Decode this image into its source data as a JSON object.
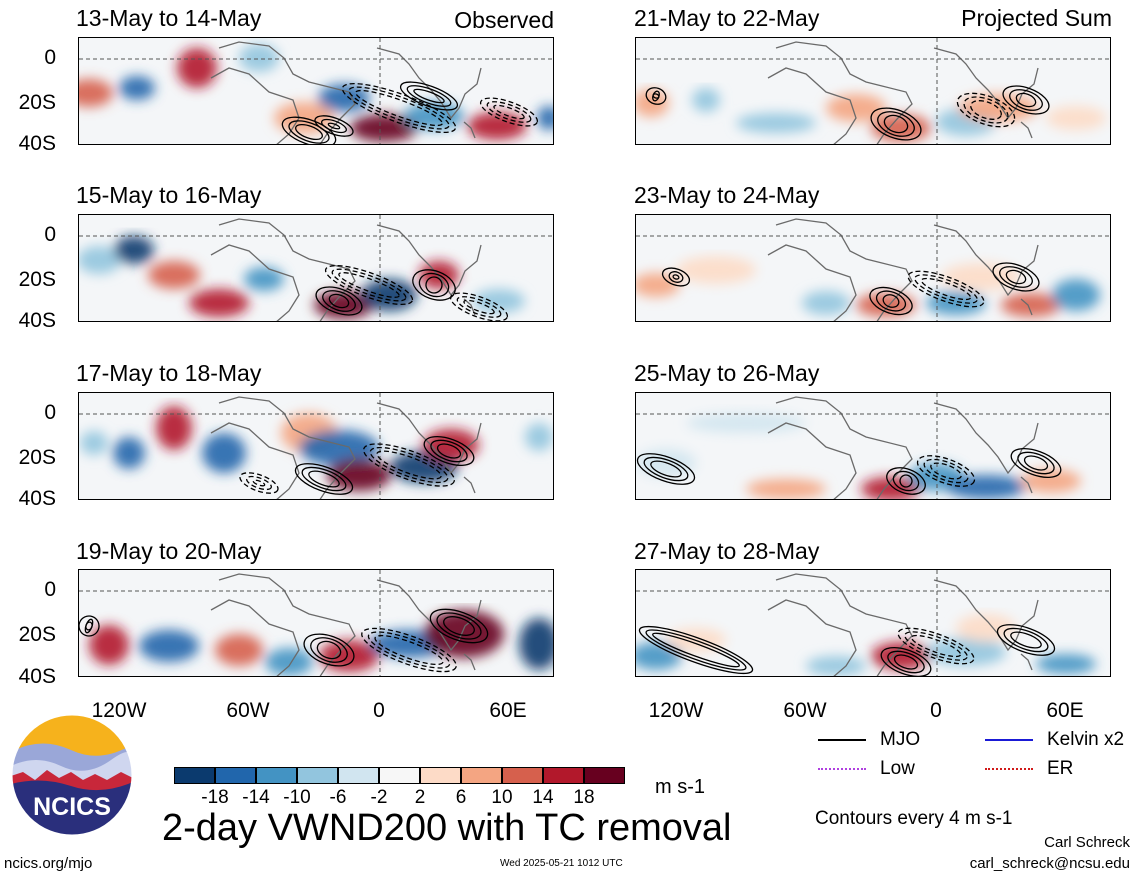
{
  "panels_left": [
    {
      "title": "13-May to 14-May",
      "tag": "Observed"
    },
    {
      "title": "15-May to 16-May",
      "tag": ""
    },
    {
      "title": "17-May to 18-May",
      "tag": ""
    },
    {
      "title": "19-May to 20-May",
      "tag": ""
    }
  ],
  "panels_right": [
    {
      "title": "21-May to 22-May",
      "tag": "Projected Sum"
    },
    {
      "title": "23-May to 24-May",
      "tag": ""
    },
    {
      "title": "25-May to 26-May",
      "tag": ""
    },
    {
      "title": "27-May to 28-May",
      "tag": ""
    }
  ],
  "lat_labels": [
    "0",
    "20S",
    "40S"
  ],
  "lon_labels": [
    "120W",
    "60W",
    "0",
    "60E"
  ],
  "colorbar": {
    "unit": "m s-1",
    "ticks": [
      "-18",
      "-14",
      "-10",
      "-6",
      "-2",
      "2",
      "6",
      "10",
      "14",
      "18"
    ],
    "colors": [
      "#0b3a6e",
      "#2166ac",
      "#4393c3",
      "#92c5de",
      "#d1e5f0",
      "#f7f7f7",
      "#fddbc7",
      "#f4a582",
      "#d6604d",
      "#b2182b",
      "#67001f"
    ]
  },
  "legend": {
    "mjo": "MJO",
    "kelvin": "Kelvin x2",
    "low": "Low",
    "er": "ER",
    "contour_note": "Contours every 4 m s-1"
  },
  "legend_colors": {
    "mjo": "#000000",
    "kelvin": "#1a1ad6",
    "low": "#b040e0",
    "er": "#d11a1a"
  },
  "title": "2-day VWND200 with TC removal",
  "logo_text": "NCICS",
  "footer": {
    "left": "ncics.org/mjo",
    "center": "Wed 2025-05-21 1012 UTC",
    "author": "Carl Schreck",
    "email": "carl_schreck@ncsu.edu"
  }
}
